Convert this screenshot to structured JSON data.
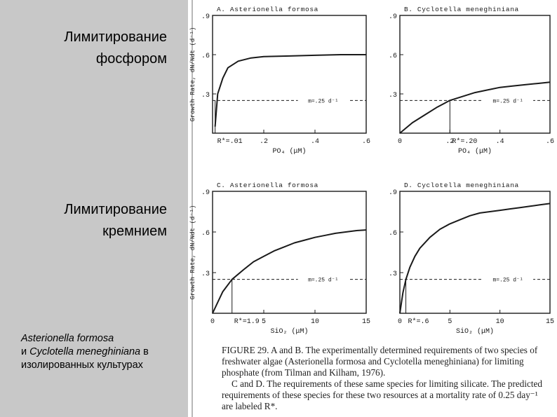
{
  "slide": {
    "label_phosphorus": "Лимитирование фосфором",
    "label_silicon": "Лимитирование кремнием",
    "species_1": "Asterionella formosa",
    "species_join": "и",
    "species_2": "Cyclotella meneghiniana",
    "species_tail_1": "в",
    "species_tail_2": "изолированных культурах"
  },
  "figure_caption": {
    "ab": "FIGURE 29. A and B. The experimentally determined requirements of two species of freshwater algae (Asterionella formosa and Cyclotella meneghiniana) for limiting phosphate (from Tilman and Kilham, 1976).",
    "cd": "C and D. The requirements of these same species for limiting silicate. The predicted requirements of these species for these two resources at a mortality rate of 0.25 day⁻¹ are labeled R*."
  },
  "colors": {
    "left_panel": "#c8c8c8",
    "ink": "#000000",
    "scan_ink": "#1a1a1a"
  },
  "chart_data": [
    {
      "type": "line",
      "title": "A. Asterionella formosa",
      "ylabel": "Growth Rate, dN/Ndt (d⁻¹)",
      "xlabel": "PO₄ (μM)",
      "xlim": [
        0,
        0.6
      ],
      "ylim": [
        0,
        0.9
      ],
      "x_tick_labels": [
        ".2",
        ".4",
        ".6"
      ],
      "x_ticks": [
        0.2,
        0.4,
        0.6
      ],
      "y_tick_labels": [
        ".3",
        ".6",
        ".9"
      ],
      "y_ticks": [
        0.3,
        0.6,
        0.9
      ],
      "curve_x": [
        0.01,
        0.02,
        0.04,
        0.06,
        0.1,
        0.15,
        0.2,
        0.3,
        0.4,
        0.5,
        0.6
      ],
      "curve_y": [
        0.05,
        0.3,
        0.42,
        0.5,
        0.55,
        0.575,
        0.585,
        0.59,
        0.595,
        0.6,
        0.6
      ],
      "mortality_line": 0.25,
      "mortality_label": "m=.25 d⁻¹",
      "rstar": 0.01,
      "rstar_label": "R*=.01"
    },
    {
      "type": "line",
      "title": "B. Cyclotella meneghiniana",
      "ylabel": "",
      "xlabel": "PO₄ (μM)",
      "xlim": [
        0,
        0.6
      ],
      "ylim": [
        0,
        0.9
      ],
      "x_tick_labels": [
        "0",
        ".2",
        ".4",
        ".6"
      ],
      "x_ticks": [
        0,
        0.2,
        0.4,
        0.6
      ],
      "y_tick_labels": [
        ".3",
        ".6",
        ".9"
      ],
      "y_ticks": [
        0.3,
        0.6,
        0.9
      ],
      "curve_x": [
        0,
        0.05,
        0.1,
        0.15,
        0.2,
        0.25,
        0.3,
        0.35,
        0.4,
        0.45,
        0.5,
        0.55,
        0.6
      ],
      "curve_y": [
        0,
        0.08,
        0.14,
        0.2,
        0.25,
        0.28,
        0.31,
        0.33,
        0.35,
        0.36,
        0.37,
        0.38,
        0.39
      ],
      "mortality_line": 0.25,
      "mortality_label": "m=.25 d⁻¹",
      "rstar": 0.2,
      "rstar_label": "R*=.20"
    },
    {
      "type": "line",
      "title": "C. Asterionella formosa",
      "ylabel": "Growth Rate, dN/Ndt (d⁻¹)",
      "xlabel": "SiO₂ (μM)",
      "xlim": [
        0,
        15
      ],
      "ylim": [
        0,
        0.9
      ],
      "x_tick_labels": [
        "0",
        "5",
        "10",
        "15"
      ],
      "x_ticks": [
        0,
        5,
        10,
        15
      ],
      "y_tick_labels": [
        ".3",
        ".6",
        ".9"
      ],
      "y_ticks": [
        0.3,
        0.6,
        0.9
      ],
      "curve_x": [
        0,
        0.5,
        1,
        1.9,
        3,
        4,
        5,
        6,
        7,
        8,
        9,
        10,
        11,
        12,
        13,
        14,
        15
      ],
      "curve_y": [
        0,
        0.08,
        0.16,
        0.25,
        0.32,
        0.38,
        0.42,
        0.46,
        0.49,
        0.52,
        0.54,
        0.56,
        0.575,
        0.59,
        0.6,
        0.61,
        0.615
      ],
      "mortality_line": 0.25,
      "mortality_label": "m=.25 d⁻¹",
      "rstar": 1.9,
      "rstar_label": "R*=1.9"
    },
    {
      "type": "line",
      "title": "D. Cyclotella meneghiniana",
      "ylabel": "",
      "xlabel": "SiO₂ (μM)",
      "xlim": [
        0,
        15
      ],
      "ylim": [
        0,
        0.9
      ],
      "x_tick_labels": [
        "0",
        "5",
        "10",
        "15"
      ],
      "x_ticks": [
        0,
        5,
        10,
        15
      ],
      "y_tick_labels": [
        ".3",
        ".6",
        ".9"
      ],
      "y_ticks": [
        0.3,
        0.6,
        0.9
      ],
      "curve_x": [
        0,
        0.3,
        0.6,
        1,
        1.5,
        2,
        3,
        4,
        5,
        6,
        7,
        8,
        9,
        10,
        11,
        12,
        13,
        14,
        15
      ],
      "curve_y": [
        0,
        0.15,
        0.25,
        0.34,
        0.42,
        0.48,
        0.56,
        0.62,
        0.66,
        0.69,
        0.72,
        0.74,
        0.75,
        0.76,
        0.77,
        0.78,
        0.79,
        0.8,
        0.81
      ],
      "mortality_line": 0.25,
      "mortality_label": "m=.25 d⁻¹",
      "rstar": 0.6,
      "rstar_label": "R*=.6"
    }
  ]
}
